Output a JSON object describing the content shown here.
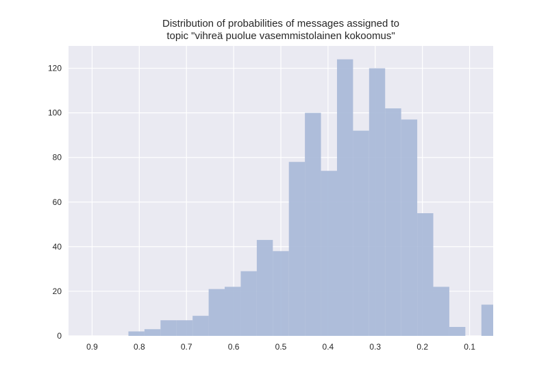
{
  "chart_data": {
    "type": "bar",
    "title_lines": [
      "Distribution of probabilities of messages assigned to",
      "topic \"vihreä puolue vasemmistolainen kokoomus\""
    ],
    "xlabel": "",
    "ylabel": "",
    "x_reversed": true,
    "xlim": [
      0.95,
      0.05
    ],
    "ylim": [
      0,
      130
    ],
    "grid": true,
    "bar_color": "#a8b8d8",
    "background_color": "#eaeaf2",
    "grid_color": "#ffffff",
    "x_ticks": [
      {
        "value": 0.9,
        "label": "0.9"
      },
      {
        "value": 0.8,
        "label": "0.8"
      },
      {
        "value": 0.7,
        "label": "0.7"
      },
      {
        "value": 0.6,
        "label": "0.6"
      },
      {
        "value": 0.5,
        "label": "0.5"
      },
      {
        "value": 0.4,
        "label": "0.4"
      },
      {
        "value": 0.3,
        "label": "0.3"
      },
      {
        "value": 0.2,
        "label": "0.2"
      },
      {
        "value": 0.1,
        "label": "0.1"
      }
    ],
    "y_ticks": [
      {
        "value": 0,
        "label": "0"
      },
      {
        "value": 20,
        "label": "20"
      },
      {
        "value": 40,
        "label": "40"
      },
      {
        "value": 60,
        "label": "60"
      },
      {
        "value": 80,
        "label": "80"
      },
      {
        "value": 100,
        "label": "100"
      },
      {
        "value": 120,
        "label": "120"
      }
    ],
    "bins": [
      {
        "x_start": 0.823,
        "x_end": 0.789,
        "count": 2
      },
      {
        "x_start": 0.789,
        "x_end": 0.755,
        "count": 3
      },
      {
        "x_start": 0.755,
        "x_end": 0.721,
        "count": 7
      },
      {
        "x_start": 0.721,
        "x_end": 0.687,
        "count": 7
      },
      {
        "x_start": 0.687,
        "x_end": 0.653,
        "count": 9
      },
      {
        "x_start": 0.653,
        "x_end": 0.619,
        "count": 21
      },
      {
        "x_start": 0.619,
        "x_end": 0.585,
        "count": 22
      },
      {
        "x_start": 0.585,
        "x_end": 0.551,
        "count": 29
      },
      {
        "x_start": 0.551,
        "x_end": 0.517,
        "count": 43
      },
      {
        "x_start": 0.517,
        "x_end": 0.483,
        "count": 38
      },
      {
        "x_start": 0.483,
        "x_end": 0.449,
        "count": 78
      },
      {
        "x_start": 0.449,
        "x_end": 0.415,
        "count": 100
      },
      {
        "x_start": 0.415,
        "x_end": 0.381,
        "count": 74
      },
      {
        "x_start": 0.381,
        "x_end": 0.347,
        "count": 124
      },
      {
        "x_start": 0.347,
        "x_end": 0.313,
        "count": 92
      },
      {
        "x_start": 0.313,
        "x_end": 0.279,
        "count": 120
      },
      {
        "x_start": 0.279,
        "x_end": 0.245,
        "count": 102
      },
      {
        "x_start": 0.245,
        "x_end": 0.211,
        "count": 97
      },
      {
        "x_start": 0.211,
        "x_end": 0.177,
        "count": 55
      },
      {
        "x_start": 0.177,
        "x_end": 0.143,
        "count": 22
      },
      {
        "x_start": 0.143,
        "x_end": 0.109,
        "count": 4
      },
      {
        "x_start": 0.075,
        "x_end": 0.05,
        "count": 14
      }
    ]
  }
}
